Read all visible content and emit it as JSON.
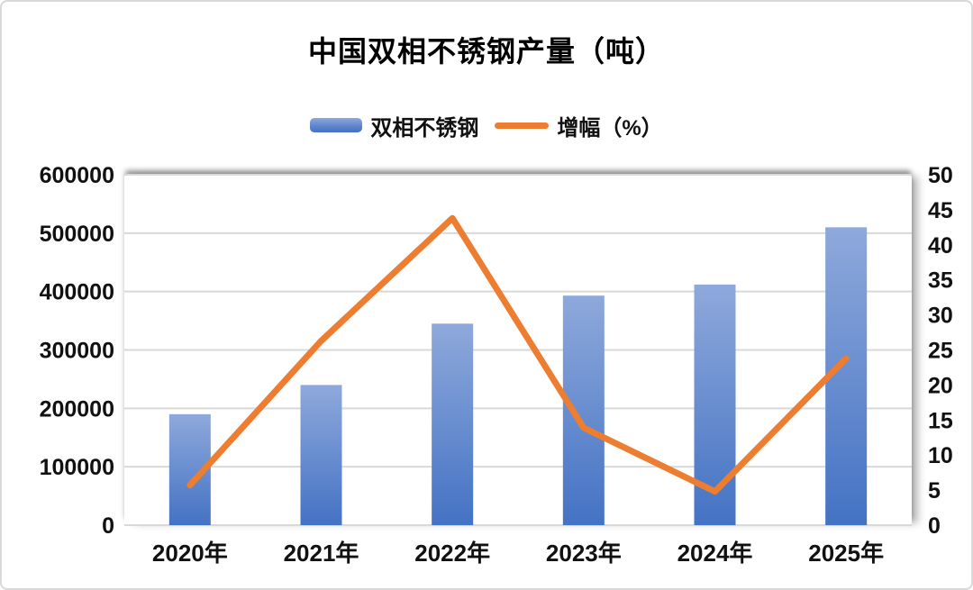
{
  "frame": {
    "background": "#ffffff",
    "border_color": "#d9d9d9"
  },
  "chart_data": {
    "type": "combo-bar-line",
    "title": "中国双相不锈钢产量（吨）",
    "categories": [
      "2020年",
      "2021年",
      "2022年",
      "2023年",
      "2024年",
      "2025年"
    ],
    "series": [
      {
        "name": "双相不锈钢",
        "type": "bar",
        "axis": "left",
        "values": [
          190000,
          240000,
          345000,
          393000,
          412000,
          510000
        ],
        "color_top": "#8ea9db",
        "color_bottom": "#4472c4"
      },
      {
        "name": "增幅（%）",
        "type": "line",
        "axis": "right",
        "values": [
          5.7,
          26.3,
          43.8,
          13.9,
          4.8,
          23.8
        ],
        "color": "#ed7d31",
        "stroke_width": 7
      }
    ],
    "left_axis": {
      "min": 0,
      "max": 600000,
      "step": 100000,
      "tick_labels": [
        "0",
        "100000",
        "200000",
        "300000",
        "400000",
        "500000",
        "600000"
      ]
    },
    "right_axis": {
      "min": 0,
      "max": 50,
      "step": 5,
      "tick_labels": [
        "0",
        "5",
        "10",
        "15",
        "20",
        "25",
        "30",
        "35",
        "40",
        "45",
        "50"
      ]
    },
    "grid": true,
    "gridline_color": "#d9d9d9",
    "text_color": "#111111",
    "legend_position": "top"
  }
}
